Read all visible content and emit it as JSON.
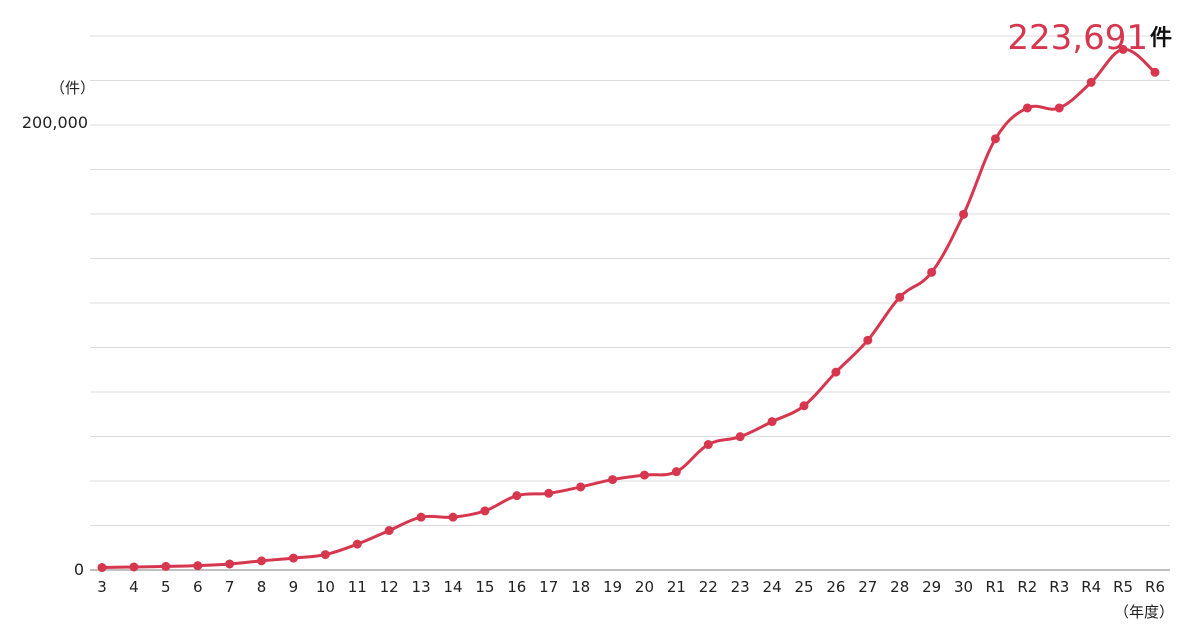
{
  "chart_data": {
    "type": "line",
    "y_unit_label": "（件）",
    "x_unit_label": "（年度）",
    "y_tick_labels": [
      "0",
      "200,000"
    ],
    "ylim": [
      0,
      240000
    ],
    "grid": true,
    "callout": {
      "value_text": "223,691",
      "unit_text": "件"
    },
    "line_color": "#d6374f",
    "categories": [
      "3",
      "4",
      "5",
      "6",
      "7",
      "8",
      "9",
      "10",
      "11",
      "12",
      "13",
      "14",
      "15",
      "16",
      "17",
      "18",
      "19",
      "20",
      "21",
      "22",
      "23",
      "24",
      "25",
      "26",
      "27",
      "28",
      "29",
      "30",
      "R1",
      "R2",
      "R3",
      "R4",
      "R5",
      "R6"
    ],
    "series": [
      {
        "values": [
          1101,
          1372,
          1611,
          1961,
          2722,
          4102,
          5352,
          6932,
          11631,
          17725,
          23738,
          23738,
          26569,
          33408,
          34472,
          37323,
          40639,
          42664,
          44211,
          56384,
          59919,
          66701,
          73802,
          88931,
          103286,
          122575,
          133778,
          159838,
          193780,
          207660,
          207660,
          219170,
          233977,
          223691
        ]
      }
    ]
  }
}
